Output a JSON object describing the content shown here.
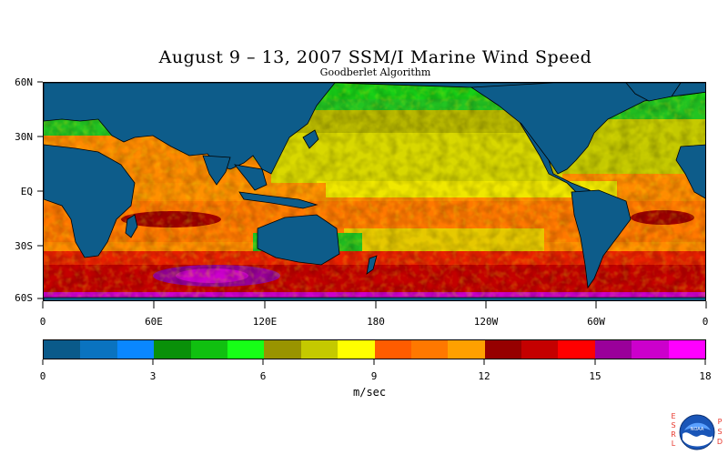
{
  "title": "August 9 – 13, 2007 SSM/I Marine Wind Speed",
  "subtitle": "Goodberlet Algorithm",
  "latitude_labels": [
    "60N",
    "30N",
    "EQ",
    "30S",
    "60S"
  ],
  "longitude_labels": [
    "0",
    "60E",
    "120E",
    "180",
    "120W",
    "60W",
    "0"
  ],
  "colorbar": {
    "unit": "m/sec",
    "min": 0,
    "max": 18,
    "step": 1,
    "tick_labels": [
      "0",
      "3",
      "6",
      "9",
      "12",
      "15",
      "18"
    ],
    "colors": [
      "#0a5a8a",
      "#0a73c0",
      "#0a87ff",
      "#099009",
      "#10c010",
      "#17ff17",
      "#999400",
      "#c4c900",
      "#ffff00",
      "#ff5c00",
      "#ff7800",
      "#ffa000",
      "#960000",
      "#c40000",
      "#ff0000",
      "#9a009a",
      "#cc00cc",
      "#ff00ff"
    ]
  },
  "map": {
    "land_color": "#0d5c8a",
    "coastline_color": "#000000",
    "extent": {
      "lon": [
        0,
        360
      ],
      "lat": [
        -65,
        62
      ]
    }
  },
  "logo": {
    "left_letters": "ESRL",
    "right_letters": "PSD",
    "label": "NOAA"
  }
}
